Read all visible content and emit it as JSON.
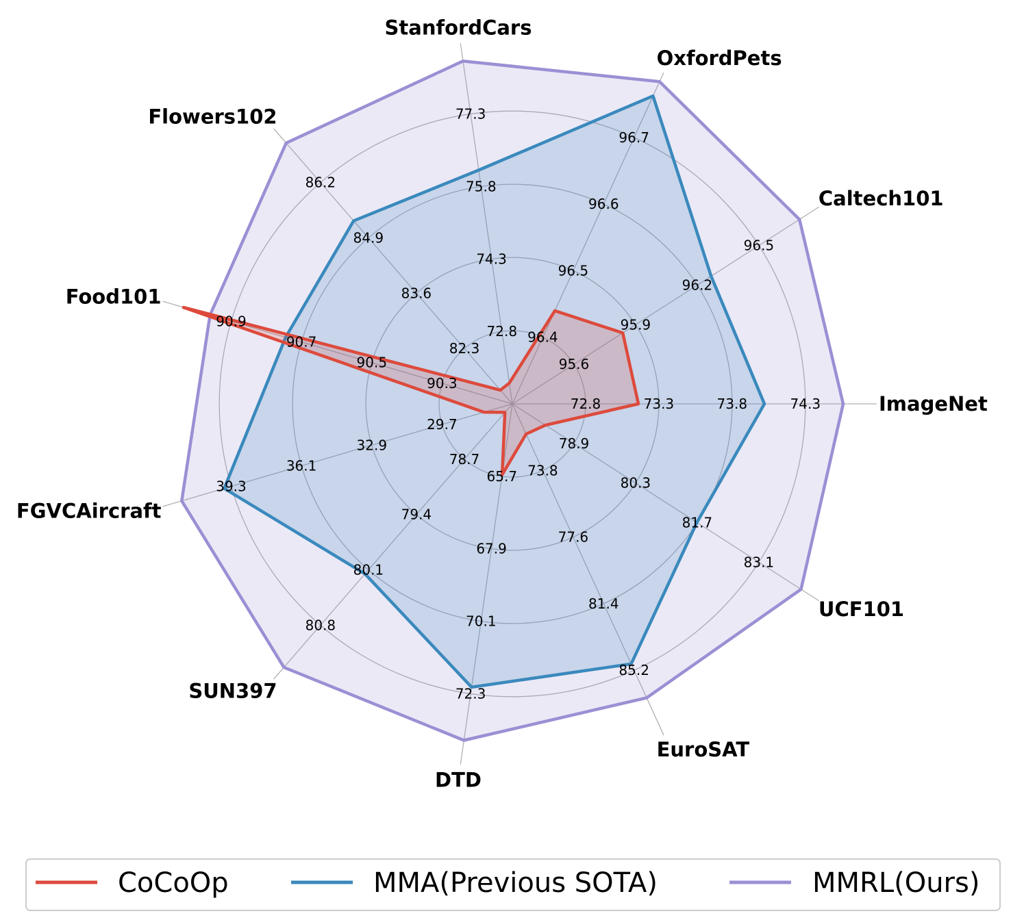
{
  "chart_data": {
    "type": "radar",
    "axes": [
      "ImageNet",
      "Caltech101",
      "OxfordPets",
      "StanfordCars",
      "Flowers102",
      "Food101",
      "FGVCAircraft",
      "SUN397",
      "DTD",
      "EuroSAT",
      "UCF101"
    ],
    "tick_labels": [
      [
        "72.8",
        "73.3",
        "73.8",
        "74.3"
      ],
      [
        "95.6",
        "95.9",
        "96.2",
        "96.5"
      ],
      [
        "96.4",
        "96.5",
        "96.6",
        "96.7"
      ],
      [
        "72.8",
        "74.3",
        "75.8",
        "77.3"
      ],
      [
        "82.3",
        "83.6",
        "84.9",
        "86.2"
      ],
      [
        "90.3",
        "90.5",
        "90.7",
        "90.9"
      ],
      [
        "29.7",
        "32.9",
        "36.1",
        "39.3"
      ],
      [
        "78.7",
        "79.4",
        "80.1",
        "80.8"
      ],
      [
        "65.7",
        "67.9",
        "70.1",
        "72.3"
      ],
      [
        "73.8",
        "77.6",
        "81.4",
        "85.2"
      ],
      [
        "78.9",
        "80.3",
        "81.7",
        "83.1"
      ]
    ],
    "axis_ranges": [
      [
        72.3,
        74.3
      ],
      [
        95.3,
        96.5
      ],
      [
        96.3,
        96.7
      ],
      [
        71.3,
        77.3
      ],
      [
        81.0,
        86.2
      ],
      [
        90.1,
        90.9
      ],
      [
        26.5,
        39.3
      ],
      [
        78.0,
        80.8
      ],
      [
        63.5,
        72.3
      ],
      [
        70.0,
        85.2
      ],
      [
        77.5,
        83.1
      ]
    ],
    "series": [
      {
        "name": "CoCoOp",
        "color": "#dd4a3c",
        "values": [
          73.1,
          95.8,
          96.43,
          71.7,
          81.3,
          90.97,
          27.7,
          78.1,
          65.5,
          71.6,
          78.2
        ]
      },
      {
        "name": "MMA(Previous SOTA)",
        "color": "#3a89bd",
        "values": [
          73.9,
          96.2,
          96.73,
          75.8,
          85.0,
          90.7,
          38.7,
          80.0,
          71.5,
          83.8,
          81.4
        ]
      },
      {
        "name": "MMRL(Ours)",
        "color": "#9b8fd4",
        "values": [
          74.4,
          96.6,
          96.75,
          77.9,
          86.7,
          90.9,
          40.5,
          81.1,
          73.0,
          85.6,
          83.6
        ]
      }
    ],
    "legend_position": "bottom",
    "grid": true
  }
}
